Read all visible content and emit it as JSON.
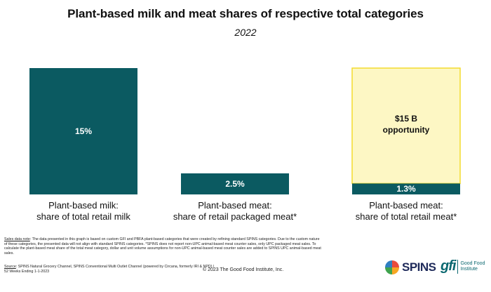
{
  "header": {
    "title": "Plant-based milk and meat shares of respective total categories",
    "subtitle": "2022"
  },
  "chart_data": {
    "type": "bar",
    "categories": [
      [
        "Plant-based milk:",
        "share of total retail milk"
      ],
      [
        "Plant-based meat:",
        "share of retail packaged meat*"
      ],
      [
        "Plant-based meat:",
        "share of total retail meat*"
      ]
    ],
    "values": [
      15,
      2.5,
      1.3
    ],
    "data_labels": [
      "15%",
      "2.5%",
      "1.3%"
    ],
    "ylim": [
      0,
      15
    ],
    "grid": false,
    "bar_color": "#0b5a61",
    "annotation": {
      "category_index": 2,
      "label_lines": [
        "$15 B",
        "opportunity"
      ],
      "target_value": 15,
      "fill": "#fdf7c4",
      "stroke": "#f3dc2f"
    }
  },
  "footer": {
    "note_label": "Sales data note",
    "note_text": ": The data presented in this graph is based on custom GFI and PBFA plant-based categories that were created by refining standard SPINS categories. Due to the custom nature of these categories, the presented data will not align with standard SPINS categories. *SPINS does not report non-UPC animal-based meat counter sales, only UPC packaged meat sales. To calculate the plant-based meat share of the total meat category, dollar and unit volume assumptions for non-UPC animal-based meat counter sales are added to SPINS UPC animal-based meat sales.",
    "source_label": "Source",
    "source_text": ": SPINS Natural Grocery Channel, SPINS Conventional Multi Outlet Channel (powered by Circana, formerly IRI & NPD) | 52 Weeks Ending 1-1-2023",
    "copyright": "© 2023 The Good Food Institute, Inc."
  },
  "logos": {
    "spins": "SPINS",
    "gfi_mark": "gfi",
    "gfi_name_line1": "Good Food",
    "gfi_name_line2": "Institute",
    "spins_colors": [
      "#e94b3c",
      "#f6a623",
      "#3fa34d",
      "#2f7fc1"
    ]
  }
}
